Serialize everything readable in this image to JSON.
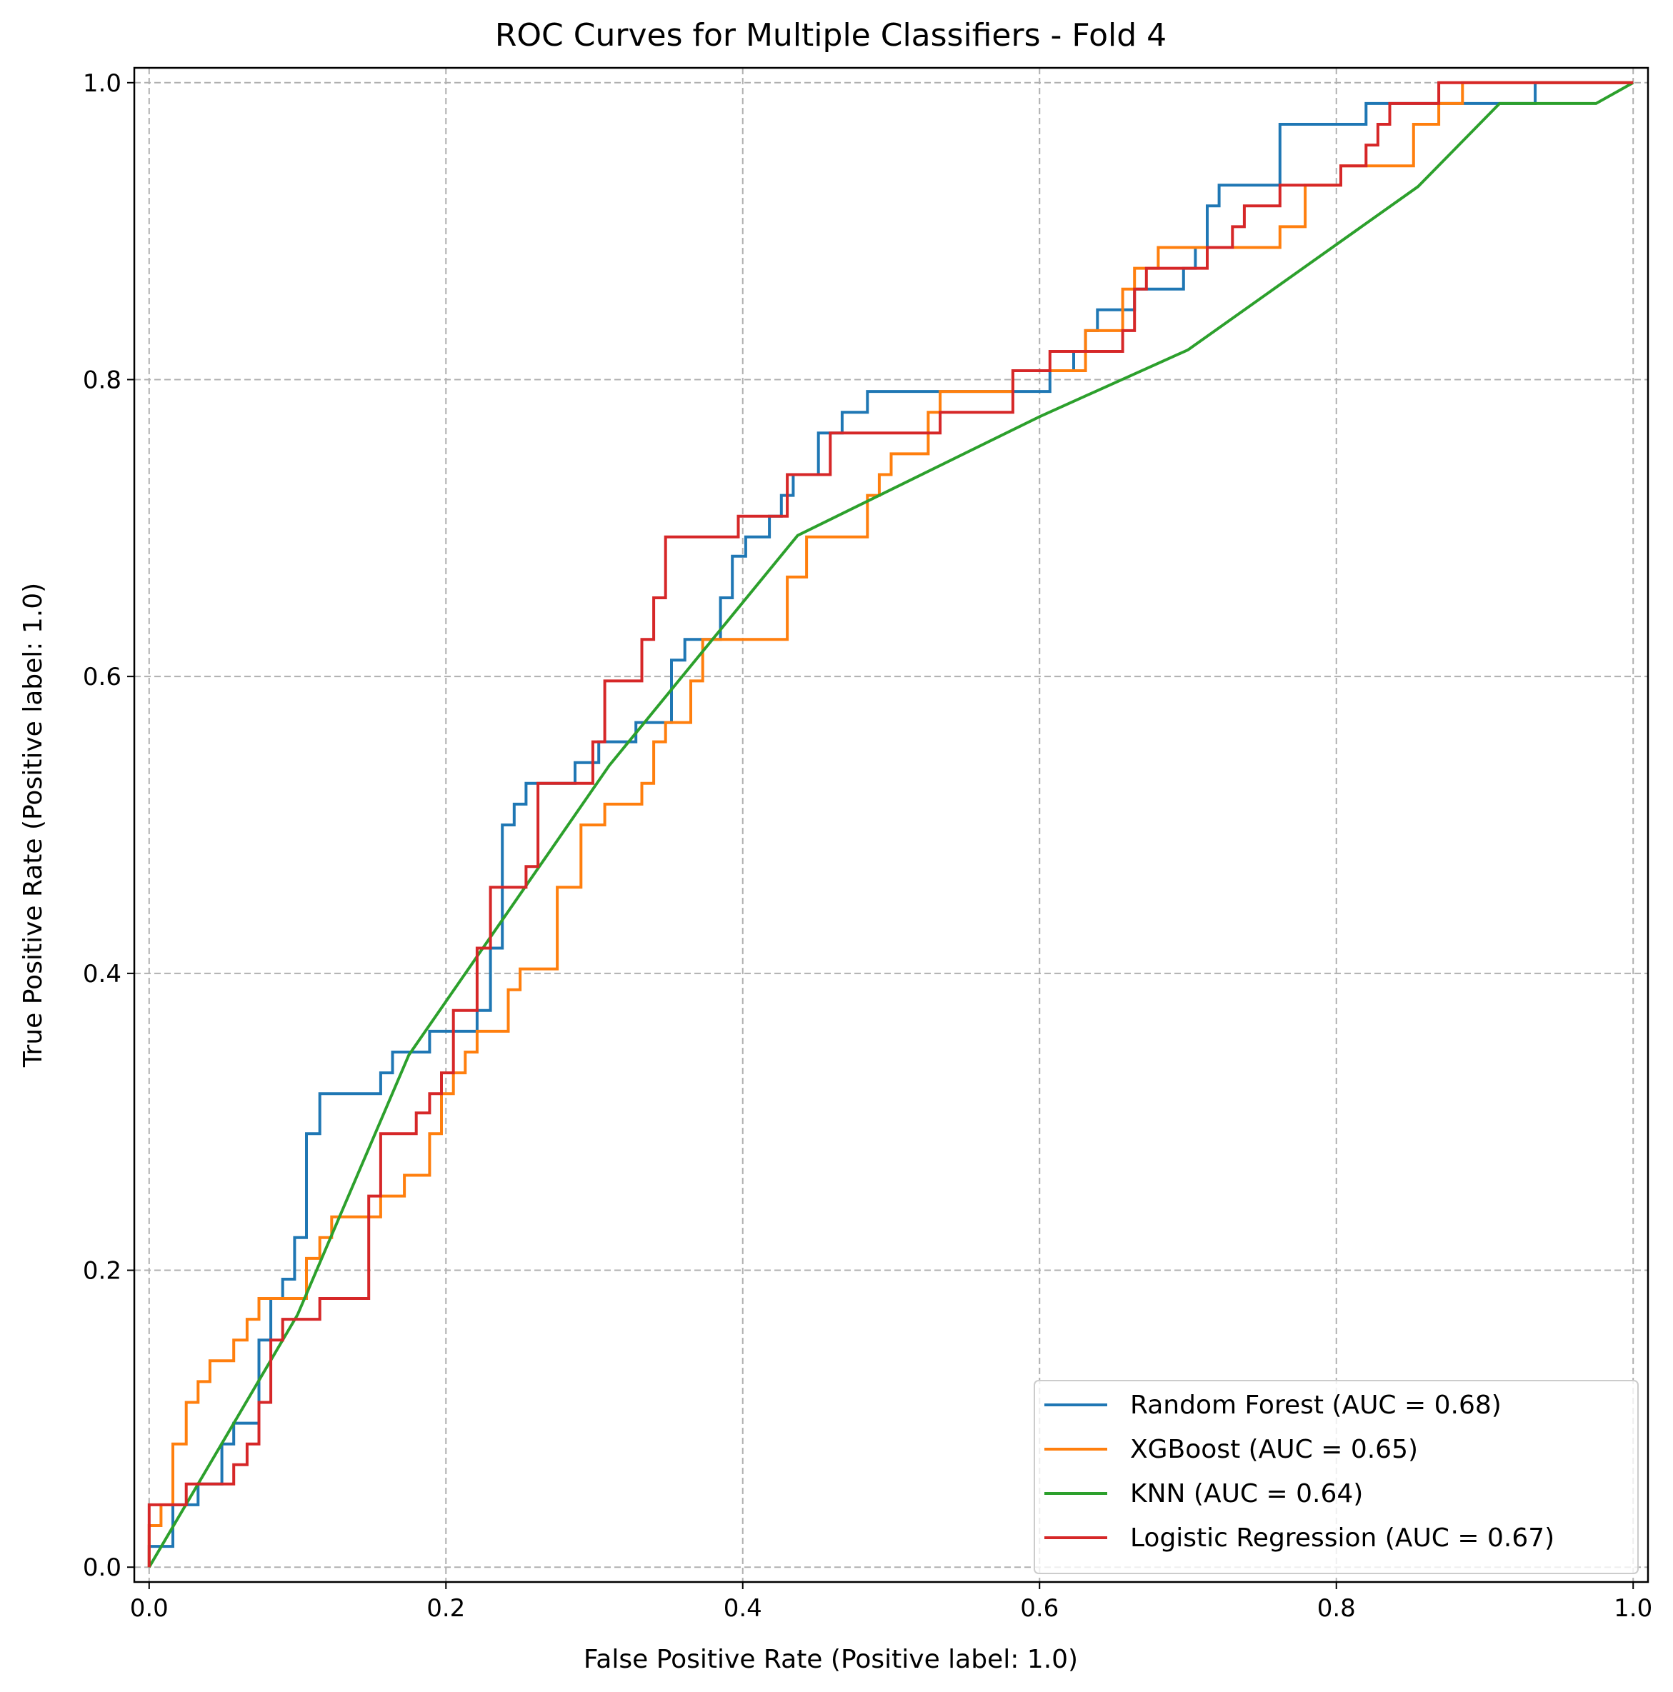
{
  "chart_data": {
    "type": "line",
    "title": "ROC Curves for Multiple Classifiers - Fold 4",
    "xlabel": "False Positive Rate (Positive label: 1.0)",
    "ylabel": "True Positive Rate (Positive label: 1.0)",
    "xlim": [
      -0.01,
      1.01
    ],
    "ylim": [
      -0.01,
      1.01
    ],
    "xticks": [
      0.0,
      0.2,
      0.4,
      0.6,
      0.8,
      1.0
    ],
    "xtick_labels": [
      "0.0",
      "0.2",
      "0.4",
      "0.6",
      "0.8",
      "1.0"
    ],
    "yticks": [
      0.0,
      0.2,
      0.4,
      0.6,
      0.8,
      1.0
    ],
    "ytick_labels": [
      "0.0",
      "0.2",
      "0.4",
      "0.6",
      "0.8",
      "1.0"
    ],
    "grid": true,
    "legend_position": "lower-right",
    "series": [
      {
        "name": "Random Forest (AUC = 0.68)",
        "color": "#1f77b4",
        "step": true,
        "points": [
          [
            0.0,
            0.0
          ],
          [
            0.0,
            0.014
          ],
          [
            0.016,
            0.014
          ],
          [
            0.016,
            0.042
          ],
          [
            0.033,
            0.042
          ],
          [
            0.033,
            0.056
          ],
          [
            0.049,
            0.056
          ],
          [
            0.049,
            0.083
          ],
          [
            0.057,
            0.083
          ],
          [
            0.057,
            0.097
          ],
          [
            0.074,
            0.097
          ],
          [
            0.074,
            0.153
          ],
          [
            0.082,
            0.153
          ],
          [
            0.082,
            0.181
          ],
          [
            0.09,
            0.181
          ],
          [
            0.09,
            0.194
          ],
          [
            0.098,
            0.194
          ],
          [
            0.098,
            0.222
          ],
          [
            0.106,
            0.222
          ],
          [
            0.106,
            0.292
          ],
          [
            0.115,
            0.292
          ],
          [
            0.115,
            0.319
          ],
          [
            0.156,
            0.319
          ],
          [
            0.156,
            0.333
          ],
          [
            0.164,
            0.333
          ],
          [
            0.164,
            0.347
          ],
          [
            0.189,
            0.347
          ],
          [
            0.189,
            0.361
          ],
          [
            0.221,
            0.361
          ],
          [
            0.221,
            0.375
          ],
          [
            0.23,
            0.375
          ],
          [
            0.23,
            0.417
          ],
          [
            0.238,
            0.417
          ],
          [
            0.238,
            0.5
          ],
          [
            0.246,
            0.5
          ],
          [
            0.246,
            0.514
          ],
          [
            0.254,
            0.514
          ],
          [
            0.254,
            0.528
          ],
          [
            0.287,
            0.528
          ],
          [
            0.287,
            0.542
          ],
          [
            0.303,
            0.542
          ],
          [
            0.303,
            0.556
          ],
          [
            0.328,
            0.556
          ],
          [
            0.328,
            0.569
          ],
          [
            0.352,
            0.569
          ],
          [
            0.352,
            0.611
          ],
          [
            0.361,
            0.611
          ],
          [
            0.361,
            0.625
          ],
          [
            0.385,
            0.625
          ],
          [
            0.385,
            0.653
          ],
          [
            0.393,
            0.653
          ],
          [
            0.393,
            0.681
          ],
          [
            0.402,
            0.681
          ],
          [
            0.402,
            0.694
          ],
          [
            0.418,
            0.694
          ],
          [
            0.418,
            0.708
          ],
          [
            0.426,
            0.708
          ],
          [
            0.426,
            0.722
          ],
          [
            0.434,
            0.722
          ],
          [
            0.434,
            0.736
          ],
          [
            0.451,
            0.736
          ],
          [
            0.451,
            0.764
          ],
          [
            0.467,
            0.764
          ],
          [
            0.467,
            0.778
          ],
          [
            0.484,
            0.778
          ],
          [
            0.484,
            0.792
          ],
          [
            0.607,
            0.792
          ],
          [
            0.607,
            0.806
          ],
          [
            0.623,
            0.806
          ],
          [
            0.623,
            0.819
          ],
          [
            0.631,
            0.819
          ],
          [
            0.631,
            0.833
          ],
          [
            0.639,
            0.833
          ],
          [
            0.639,
            0.847
          ],
          [
            0.664,
            0.847
          ],
          [
            0.664,
            0.861
          ],
          [
            0.697,
            0.861
          ],
          [
            0.697,
            0.875
          ],
          [
            0.705,
            0.875
          ],
          [
            0.705,
            0.889
          ],
          [
            0.713,
            0.889
          ],
          [
            0.713,
            0.917
          ],
          [
            0.721,
            0.917
          ],
          [
            0.721,
            0.931
          ],
          [
            0.762,
            0.931
          ],
          [
            0.762,
            0.972
          ],
          [
            0.82,
            0.972
          ],
          [
            0.82,
            0.986
          ],
          [
            0.934,
            0.986
          ],
          [
            0.934,
            1.0
          ],
          [
            1.0,
            1.0
          ]
        ]
      },
      {
        "name": "XGBoost (AUC = 0.65)",
        "color": "#ff7f0e",
        "step": true,
        "points": [
          [
            0.0,
            0.0
          ],
          [
            0.0,
            0.028
          ],
          [
            0.008,
            0.028
          ],
          [
            0.008,
            0.042
          ],
          [
            0.016,
            0.042
          ],
          [
            0.016,
            0.083
          ],
          [
            0.025,
            0.083
          ],
          [
            0.025,
            0.111
          ],
          [
            0.033,
            0.111
          ],
          [
            0.033,
            0.125
          ],
          [
            0.041,
            0.125
          ],
          [
            0.041,
            0.139
          ],
          [
            0.057,
            0.139
          ],
          [
            0.057,
            0.153
          ],
          [
            0.066,
            0.153
          ],
          [
            0.066,
            0.167
          ],
          [
            0.074,
            0.167
          ],
          [
            0.074,
            0.181
          ],
          [
            0.106,
            0.181
          ],
          [
            0.106,
            0.208
          ],
          [
            0.115,
            0.208
          ],
          [
            0.115,
            0.222
          ],
          [
            0.123,
            0.222
          ],
          [
            0.123,
            0.236
          ],
          [
            0.156,
            0.236
          ],
          [
            0.156,
            0.25
          ],
          [
            0.172,
            0.25
          ],
          [
            0.172,
            0.264
          ],
          [
            0.189,
            0.264
          ],
          [
            0.189,
            0.292
          ],
          [
            0.197,
            0.292
          ],
          [
            0.197,
            0.319
          ],
          [
            0.205,
            0.319
          ],
          [
            0.205,
            0.333
          ],
          [
            0.213,
            0.333
          ],
          [
            0.213,
            0.347
          ],
          [
            0.221,
            0.347
          ],
          [
            0.221,
            0.361
          ],
          [
            0.242,
            0.361
          ],
          [
            0.242,
            0.389
          ],
          [
            0.25,
            0.389
          ],
          [
            0.25,
            0.403
          ],
          [
            0.275,
            0.403
          ],
          [
            0.275,
            0.458
          ],
          [
            0.291,
            0.458
          ],
          [
            0.291,
            0.5
          ],
          [
            0.307,
            0.5
          ],
          [
            0.307,
            0.514
          ],
          [
            0.332,
            0.514
          ],
          [
            0.332,
            0.528
          ],
          [
            0.34,
            0.528
          ],
          [
            0.34,
            0.556
          ],
          [
            0.348,
            0.556
          ],
          [
            0.348,
            0.569
          ],
          [
            0.365,
            0.569
          ],
          [
            0.365,
            0.597
          ],
          [
            0.373,
            0.597
          ],
          [
            0.373,
            0.625
          ],
          [
            0.43,
            0.625
          ],
          [
            0.43,
            0.667
          ],
          [
            0.443,
            0.667
          ],
          [
            0.443,
            0.694
          ],
          [
            0.484,
            0.694
          ],
          [
            0.484,
            0.722
          ],
          [
            0.492,
            0.722
          ],
          [
            0.492,
            0.736
          ],
          [
            0.5,
            0.736
          ],
          [
            0.5,
            0.75
          ],
          [
            0.525,
            0.75
          ],
          [
            0.525,
            0.778
          ],
          [
            0.533,
            0.778
          ],
          [
            0.533,
            0.792
          ],
          [
            0.582,
            0.792
          ],
          [
            0.582,
            0.806
          ],
          [
            0.631,
            0.806
          ],
          [
            0.631,
            0.833
          ],
          [
            0.656,
            0.833
          ],
          [
            0.656,
            0.861
          ],
          [
            0.664,
            0.861
          ],
          [
            0.664,
            0.875
          ],
          [
            0.68,
            0.875
          ],
          [
            0.68,
            0.889
          ],
          [
            0.762,
            0.889
          ],
          [
            0.762,
            0.903
          ],
          [
            0.779,
            0.903
          ],
          [
            0.779,
            0.931
          ],
          [
            0.803,
            0.931
          ],
          [
            0.803,
            0.944
          ],
          [
            0.852,
            0.944
          ],
          [
            0.852,
            0.972
          ],
          [
            0.869,
            0.972
          ],
          [
            0.869,
            0.986
          ],
          [
            0.885,
            0.986
          ],
          [
            0.885,
            1.0
          ],
          [
            1.0,
            1.0
          ]
        ]
      },
      {
        "name": "KNN (AUC = 0.64)",
        "color": "#2ca02c",
        "step": false,
        "points": [
          [
            0.0,
            0.0
          ],
          [
            0.1,
            0.17
          ],
          [
            0.175,
            0.345
          ],
          [
            0.31,
            0.54
          ],
          [
            0.437,
            0.695
          ],
          [
            0.6,
            0.775
          ],
          [
            0.7,
            0.82
          ],
          [
            0.855,
            0.93
          ],
          [
            0.91,
            0.986
          ],
          [
            0.975,
            0.986
          ],
          [
            1.0,
            1.0
          ]
        ]
      },
      {
        "name": "Logistic Regression (AUC = 0.67)",
        "color": "#d62728",
        "step": true,
        "points": [
          [
            0.0,
            0.0
          ],
          [
            0.0,
            0.042
          ],
          [
            0.025,
            0.042
          ],
          [
            0.025,
            0.056
          ],
          [
            0.057,
            0.056
          ],
          [
            0.057,
            0.069
          ],
          [
            0.066,
            0.069
          ],
          [
            0.066,
            0.083
          ],
          [
            0.074,
            0.083
          ],
          [
            0.074,
            0.111
          ],
          [
            0.082,
            0.111
          ],
          [
            0.082,
            0.153
          ],
          [
            0.09,
            0.153
          ],
          [
            0.09,
            0.167
          ],
          [
            0.115,
            0.167
          ],
          [
            0.115,
            0.181
          ],
          [
            0.148,
            0.181
          ],
          [
            0.148,
            0.25
          ],
          [
            0.156,
            0.25
          ],
          [
            0.156,
            0.292
          ],
          [
            0.18,
            0.292
          ],
          [
            0.18,
            0.306
          ],
          [
            0.189,
            0.306
          ],
          [
            0.189,
            0.319
          ],
          [
            0.197,
            0.319
          ],
          [
            0.197,
            0.333
          ],
          [
            0.205,
            0.333
          ],
          [
            0.205,
            0.375
          ],
          [
            0.221,
            0.375
          ],
          [
            0.221,
            0.417
          ],
          [
            0.23,
            0.417
          ],
          [
            0.23,
            0.458
          ],
          [
            0.254,
            0.458
          ],
          [
            0.254,
            0.472
          ],
          [
            0.262,
            0.472
          ],
          [
            0.262,
            0.528
          ],
          [
            0.299,
            0.528
          ],
          [
            0.299,
            0.556
          ],
          [
            0.307,
            0.556
          ],
          [
            0.307,
            0.597
          ],
          [
            0.332,
            0.597
          ],
          [
            0.332,
            0.625
          ],
          [
            0.34,
            0.625
          ],
          [
            0.34,
            0.653
          ],
          [
            0.348,
            0.653
          ],
          [
            0.348,
            0.694
          ],
          [
            0.397,
            0.694
          ],
          [
            0.397,
            0.708
          ],
          [
            0.43,
            0.708
          ],
          [
            0.43,
            0.736
          ],
          [
            0.459,
            0.736
          ],
          [
            0.459,
            0.764
          ],
          [
            0.533,
            0.764
          ],
          [
            0.533,
            0.778
          ],
          [
            0.582,
            0.778
          ],
          [
            0.582,
            0.806
          ],
          [
            0.607,
            0.806
          ],
          [
            0.607,
            0.819
          ],
          [
            0.656,
            0.819
          ],
          [
            0.656,
            0.833
          ],
          [
            0.664,
            0.833
          ],
          [
            0.664,
            0.861
          ],
          [
            0.672,
            0.861
          ],
          [
            0.672,
            0.875
          ],
          [
            0.713,
            0.875
          ],
          [
            0.713,
            0.889
          ],
          [
            0.73,
            0.889
          ],
          [
            0.73,
            0.903
          ],
          [
            0.738,
            0.903
          ],
          [
            0.738,
            0.917
          ],
          [
            0.762,
            0.917
          ],
          [
            0.762,
            0.931
          ],
          [
            0.803,
            0.931
          ],
          [
            0.803,
            0.944
          ],
          [
            0.82,
            0.944
          ],
          [
            0.82,
            0.958
          ],
          [
            0.828,
            0.958
          ],
          [
            0.828,
            0.972
          ],
          [
            0.836,
            0.972
          ],
          [
            0.836,
            0.986
          ],
          [
            0.869,
            0.986
          ],
          [
            0.869,
            1.0
          ],
          [
            1.0,
            1.0
          ]
        ]
      }
    ]
  }
}
